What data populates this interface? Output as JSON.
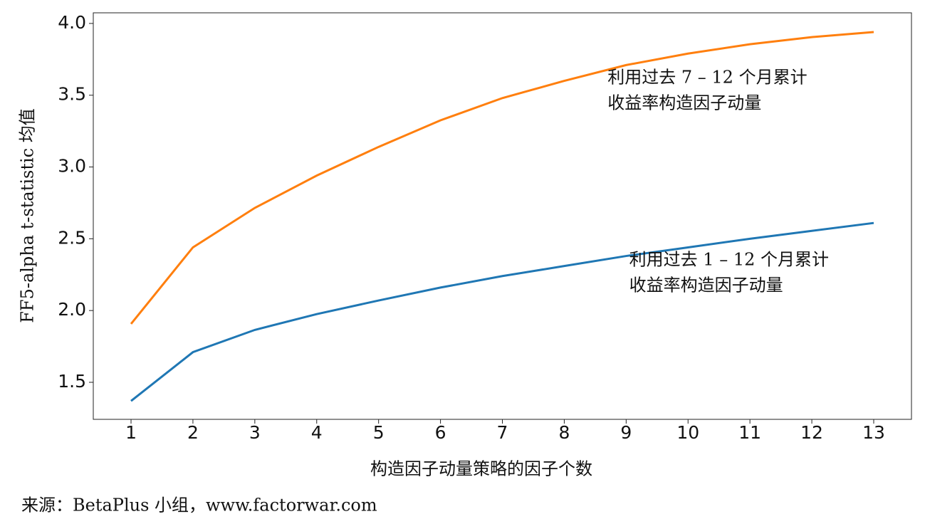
{
  "chart_data": {
    "type": "line",
    "y_label": "FF5-alpha t-statistic 均值",
    "x_label": "构造因子动量策略的因子个数",
    "source": "来源：BetaPlus 小组，www.factorwar.com",
    "x": [
      1,
      2,
      3,
      4,
      5,
      6,
      7,
      8,
      9,
      10,
      11,
      12,
      13
    ],
    "series": [
      {
        "color": "#1f77b4",
        "values": [
          1.37,
          1.71,
          1.865,
          1.975,
          2.07,
          2.16,
          2.24,
          2.31,
          2.38,
          2.44,
          2.5,
          2.555,
          2.61
        ]
      },
      {
        "color": "#ff7f0e",
        "values": [
          1.907,
          2.44,
          2.715,
          2.94,
          3.14,
          3.325,
          3.48,
          3.6,
          3.71,
          3.79,
          3.855,
          3.905,
          3.94
        ]
      }
    ],
    "annotations": [
      {
        "lines": [
          "利用过去 7 – 12 个月累计",
          "收益率构造因子动量"
        ],
        "x": 8.7,
        "y": 3.44
      },
      {
        "lines": [
          "利用过去 1 – 12 个月累计",
          "收益率构造因子动量"
        ],
        "x": 9.05,
        "y": 2.17
      }
    ],
    "xlim": [
      0.39,
      13.61
    ],
    "ylim": [
      1.242,
      4.074
    ],
    "xticks": [
      1,
      2,
      3,
      4,
      5,
      6,
      7,
      8,
      9,
      10,
      11,
      12,
      13
    ],
    "yticks": [
      {
        "value": 1.5,
        "label": "1.5"
      },
      {
        "value": 2,
        "label": "2.0"
      },
      {
        "value": 2.5,
        "label": "2.5"
      },
      {
        "value": 3,
        "label": "3.0"
      },
      {
        "value": 3.5,
        "label": "3.5"
      },
      {
        "value": 4,
        "label": "4.0"
      }
    ]
  }
}
